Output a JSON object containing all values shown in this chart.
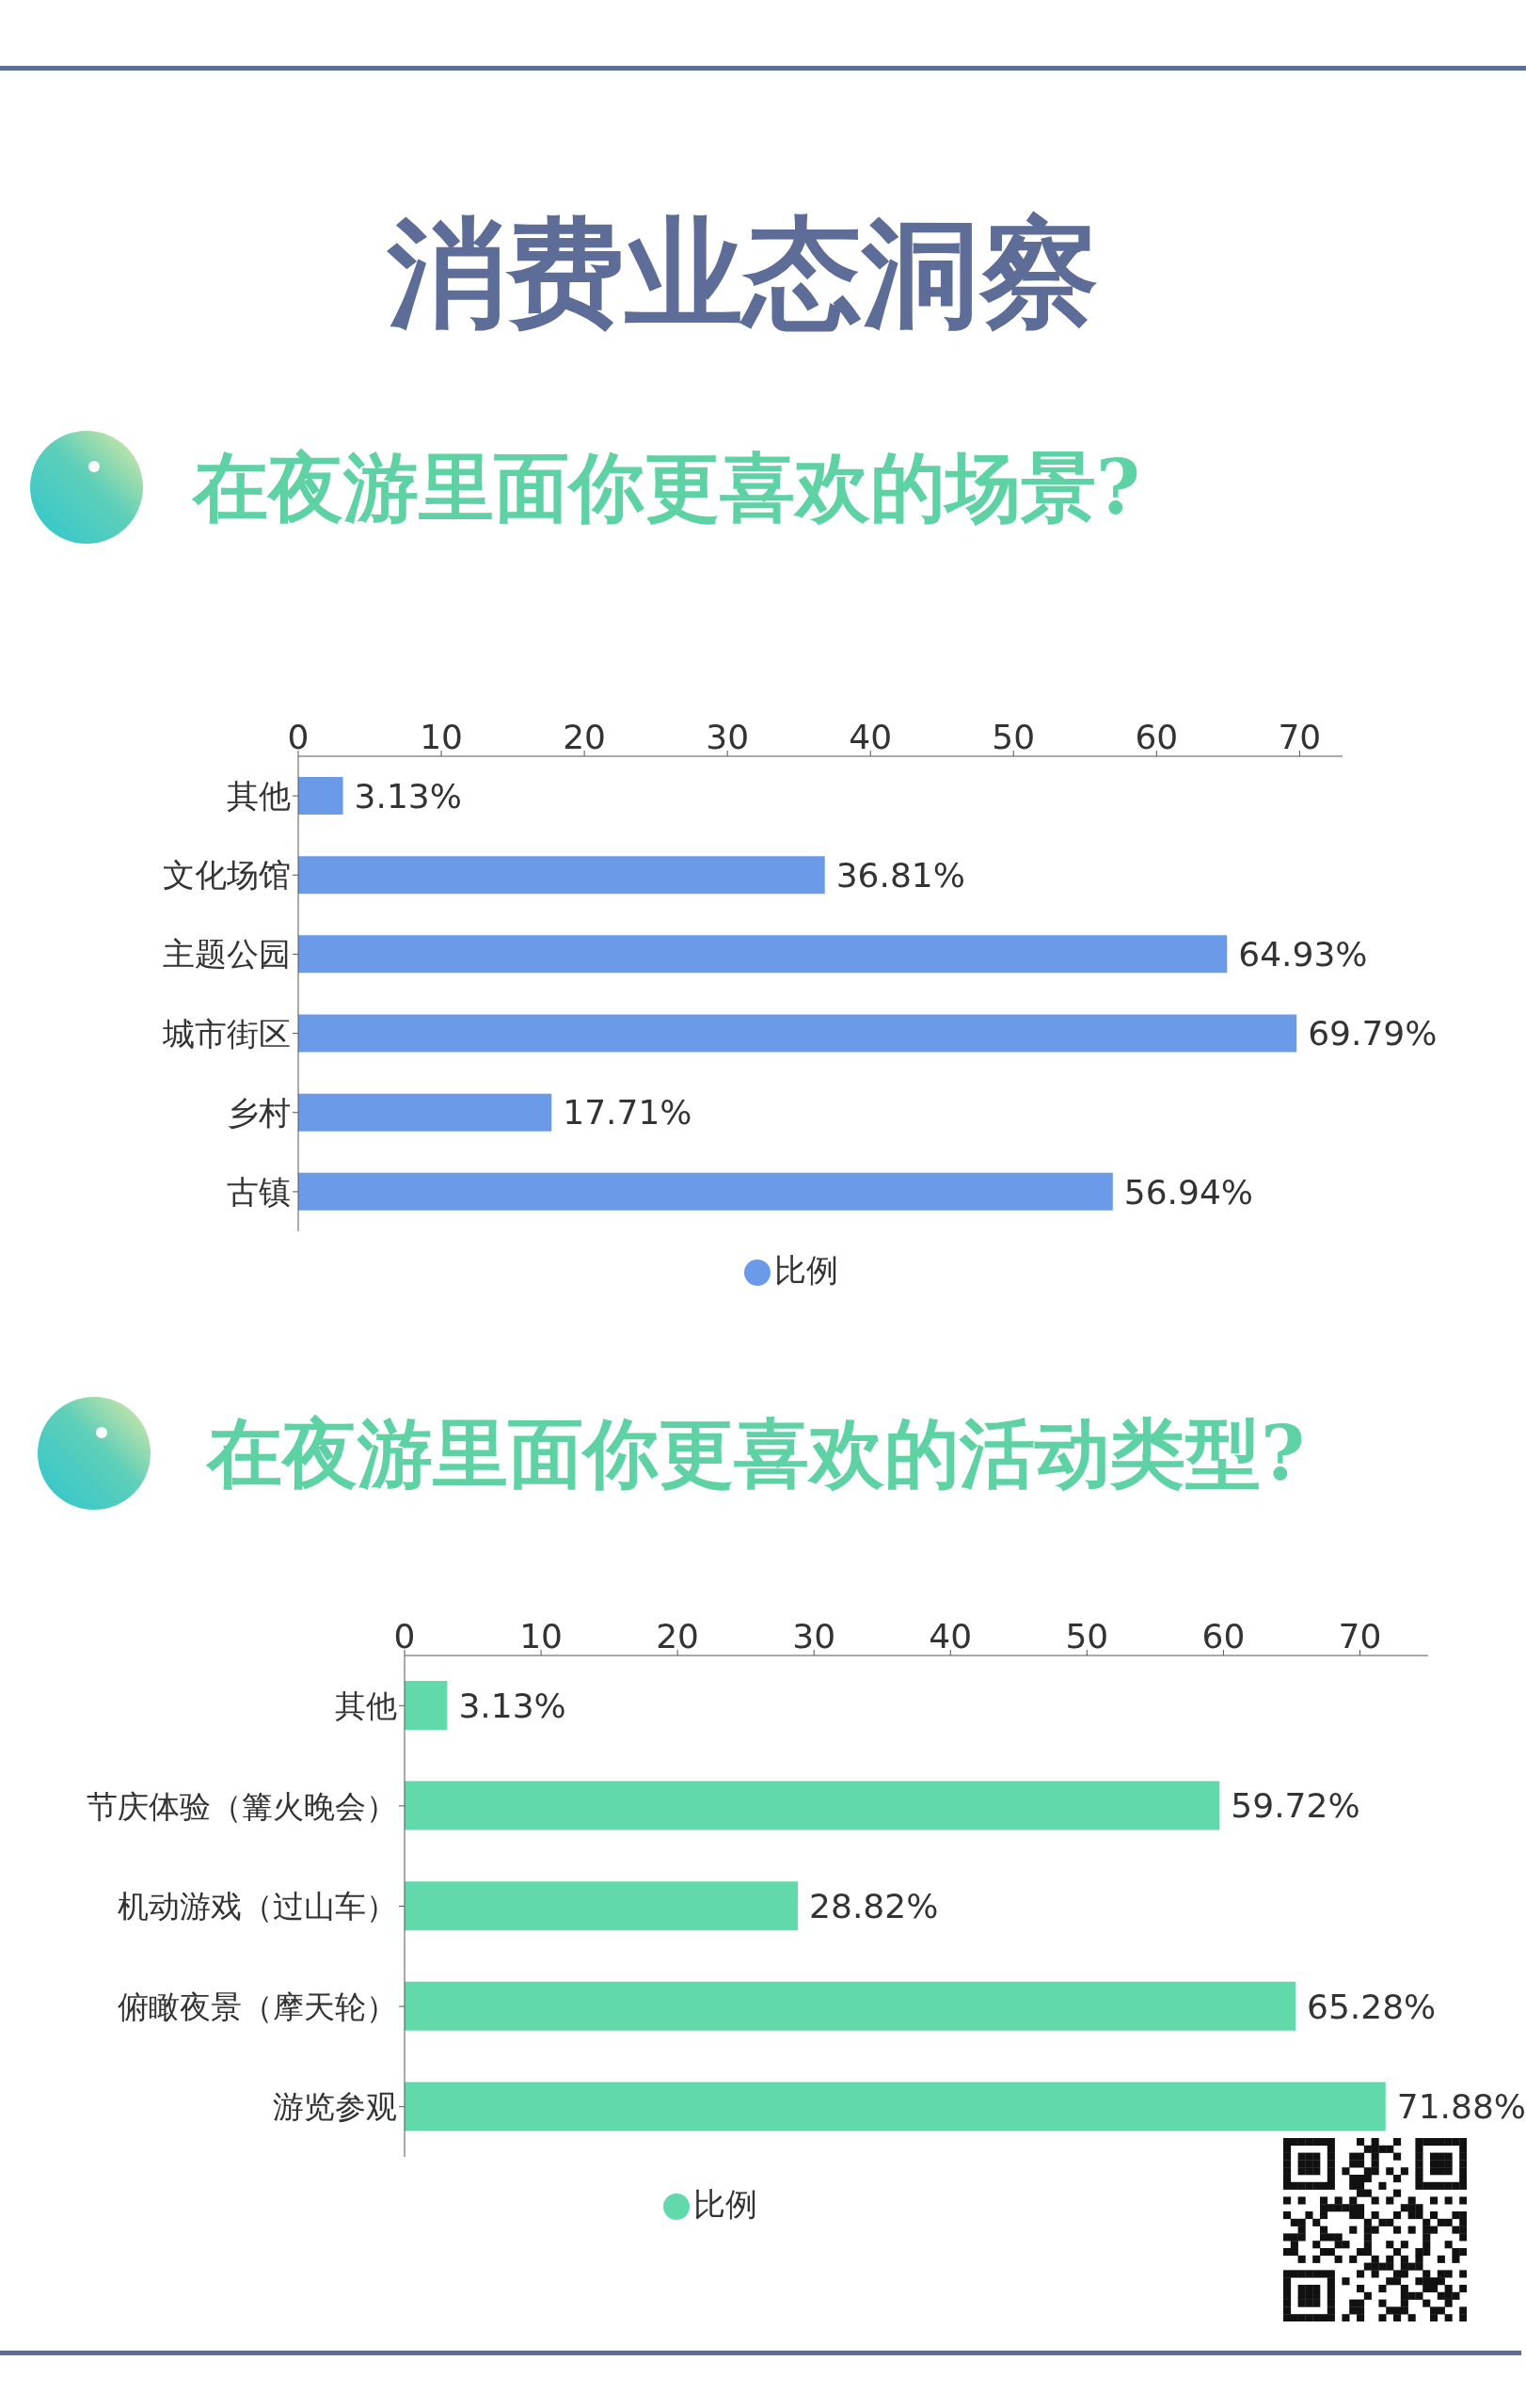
{
  "chart_data": [
    {
      "type": "bar",
      "orientation": "horizontal",
      "title": "消费业态洞察",
      "subtitle": "在夜游里面你更喜欢的场景?",
      "categories": [
        "其他",
        "文化场馆",
        "主题公园",
        "城市街区",
        "乡村",
        "古镇"
      ],
      "series": [
        {
          "name": "比例",
          "color": "#6b9be8",
          "values": [
            3.13,
            36.81,
            64.93,
            69.79,
            17.71,
            56.94
          ],
          "value_labels": [
            "3.13%",
            "36.81%",
            "64.93%",
            "69.79%",
            "17.71%",
            "56.94%"
          ]
        }
      ],
      "xlim": [
        0,
        73
      ],
      "xticks": [
        0,
        10,
        20,
        30,
        40,
        50,
        60,
        70
      ],
      "legend": "bottom"
    },
    {
      "type": "bar",
      "orientation": "horizontal",
      "title": "在夜游里面你更喜欢的活动类型?",
      "categories": [
        "其他",
        "节庆体验（篝火晚会）",
        "机动游戏（过山车）",
        "俯瞰夜景（摩天轮）",
        "游览参观"
      ],
      "series": [
        {
          "name": "比例",
          "color": "#62d9ab",
          "values": [
            3.13,
            59.72,
            28.82,
            65.28,
            71.88
          ],
          "value_labels": [
            "3.13%",
            "59.72%",
            "28.82%",
            "65.28%",
            "71.88%"
          ]
        }
      ],
      "xlim": [
        0,
        75
      ],
      "xticks": [
        0,
        10,
        20,
        30,
        40,
        50,
        60,
        70
      ],
      "legend": "bottom"
    }
  ]
}
